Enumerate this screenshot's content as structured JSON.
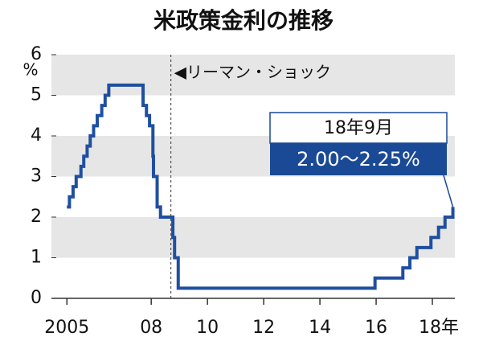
{
  "chart_data": {
    "type": "line",
    "title": "米政策金利の推移",
    "y_unit": "%",
    "step": true,
    "color": "#1f4fa0",
    "x": [
      2005.0,
      2005.09,
      2005.22,
      2005.33,
      2005.5,
      2005.6,
      2005.72,
      2005.83,
      2005.95,
      2006.08,
      2006.24,
      2006.36,
      2006.49,
      2007.71,
      2007.83,
      2007.94,
      2008.06,
      2008.08,
      2008.21,
      2008.33,
      2008.77,
      2008.83,
      2008.96,
      2015.96,
      2016.95,
      2017.2,
      2017.45,
      2017.95,
      2018.22,
      2018.45,
      2018.73
    ],
    "values": [
      2.25,
      2.5,
      2.75,
      3.0,
      3.25,
      3.5,
      3.75,
      4.0,
      4.25,
      4.5,
      4.75,
      5.0,
      5.25,
      4.75,
      4.5,
      4.25,
      3.5,
      3.0,
      2.25,
      2.0,
      1.5,
      1.0,
      0.25,
      0.5,
      0.75,
      1.0,
      1.25,
      1.5,
      1.75,
      2.0,
      2.25
    ],
    "xlim": [
      2004.45,
      2018.8
    ],
    "ylim": [
      0,
      6
    ],
    "xticks": [
      {
        "value": 2005,
        "label": "2005"
      },
      {
        "value": 2008,
        "label": "08"
      },
      {
        "value": 2010,
        "label": "10"
      },
      {
        "value": 2012,
        "label": "12"
      },
      {
        "value": 2014,
        "label": "14"
      },
      {
        "value": 2016,
        "label": "16"
      },
      {
        "value": 2018,
        "label": "18年"
      }
    ],
    "yticks": [
      0,
      1,
      2,
      3,
      4,
      5,
      6
    ],
    "band_color": "#e6e6e6",
    "event": {
      "x": 2008.7,
      "label": "◀リーマン・ショック"
    },
    "callout": {
      "date": "18年9月",
      "text": "2.00〜2.25%",
      "color": "#1a4a96"
    }
  }
}
